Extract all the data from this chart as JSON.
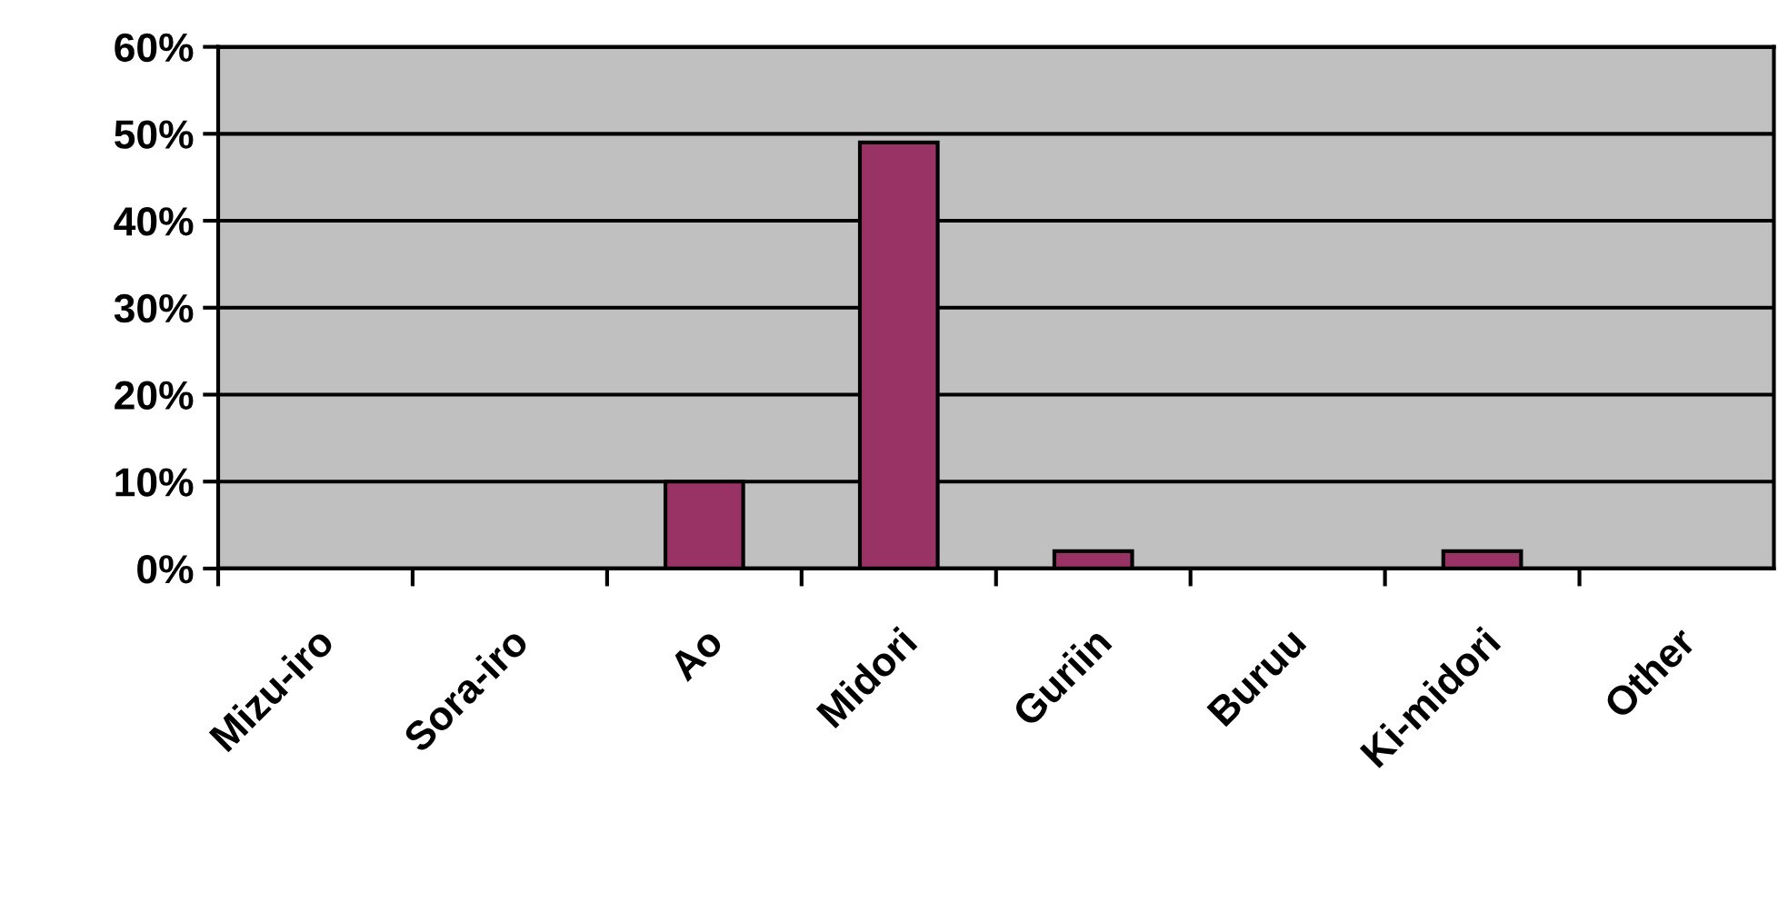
{
  "chart_data": {
    "type": "bar",
    "categories": [
      "Mizu-iro",
      "Sora-iro",
      "Ao",
      "Midori",
      "Guriin",
      "Buruu",
      "Ki-midori",
      "Other"
    ],
    "values": [
      0,
      0,
      10,
      49,
      2,
      0,
      2,
      0
    ],
    "color": "#993366",
    "ylim": [
      0,
      60
    ],
    "yticks": [
      {
        "value": 0,
        "label": "0%"
      },
      {
        "value": 10,
        "label": "10%"
      },
      {
        "value": 20,
        "label": "20%"
      },
      {
        "value": 30,
        "label": "30%"
      },
      {
        "value": 40,
        "label": "40%"
      },
      {
        "value": 50,
        "label": "50%"
      },
      {
        "value": 60,
        "label": "60%"
      }
    ],
    "grid": "y",
    "legend": false
  }
}
